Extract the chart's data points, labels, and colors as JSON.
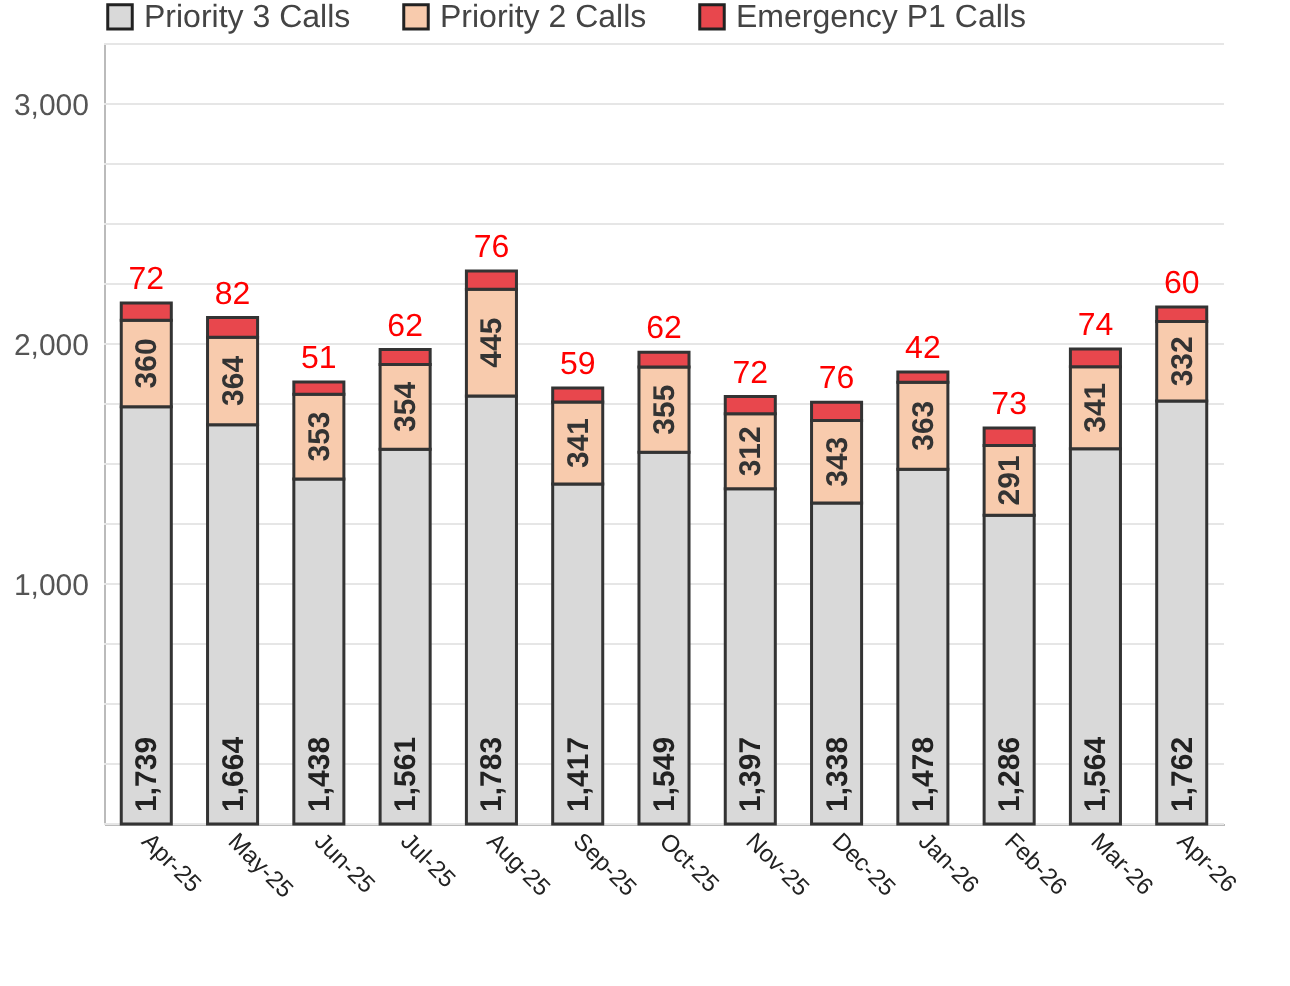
{
  "chart_data": {
    "type": "bar",
    "stacked": true,
    "categories": [
      "Apr-25",
      "May-25",
      "Jun-25",
      "Jul-25",
      "Aug-25",
      "Sep-25",
      "Oct-25",
      "Nov-25",
      "Dec-25",
      "Jan-26",
      "Feb-26",
      "Mar-26",
      "Apr-26"
    ],
    "series": [
      {
        "name": "Priority 3 Calls",
        "color": "#d9d9d9",
        "values": [
          1739,
          1664,
          1438,
          1561,
          1783,
          1417,
          1549,
          1397,
          1338,
          1478,
          1286,
          1564,
          1762
        ],
        "value_labels": [
          "1,739",
          "1,664",
          "1,438",
          "1,561",
          "1,783",
          "1,417",
          "1,549",
          "1,397",
          "1,338",
          "1,478",
          "1,286",
          "1,564",
          "1,762"
        ]
      },
      {
        "name": "Priority 2 Calls",
        "color": "#f8cbad",
        "values": [
          360,
          364,
          353,
          354,
          445,
          341,
          355,
          312,
          343,
          363,
          291,
          341,
          332
        ]
      },
      {
        "name": "Emergency P1 Calls",
        "color": "#e8474d",
        "values": [
          72,
          82,
          51,
          62,
          76,
          59,
          62,
          72,
          76,
          42,
          73,
          74,
          60
        ]
      }
    ],
    "data_labels": true,
    "ylim": [
      0,
      3250
    ],
    "yticks": [
      {
        "value": 0,
        "label": null
      },
      {
        "value": 250,
        "label": null
      },
      {
        "value": 500,
        "label": null
      },
      {
        "value": 750,
        "label": null
      },
      {
        "value": 1000,
        "label": "1,000"
      },
      {
        "value": 1250,
        "label": null
      },
      {
        "value": 1500,
        "label": null
      },
      {
        "value": 1750,
        "label": null
      },
      {
        "value": 2000,
        "label": "2,000"
      },
      {
        "value": 2250,
        "label": null
      },
      {
        "value": 2500,
        "label": null
      },
      {
        "value": 2750,
        "label": null
      },
      {
        "value": 3000,
        "label": "3,000"
      },
      {
        "value": 3250,
        "label": null
      }
    ],
    "grid": "y",
    "legend": "top"
  }
}
